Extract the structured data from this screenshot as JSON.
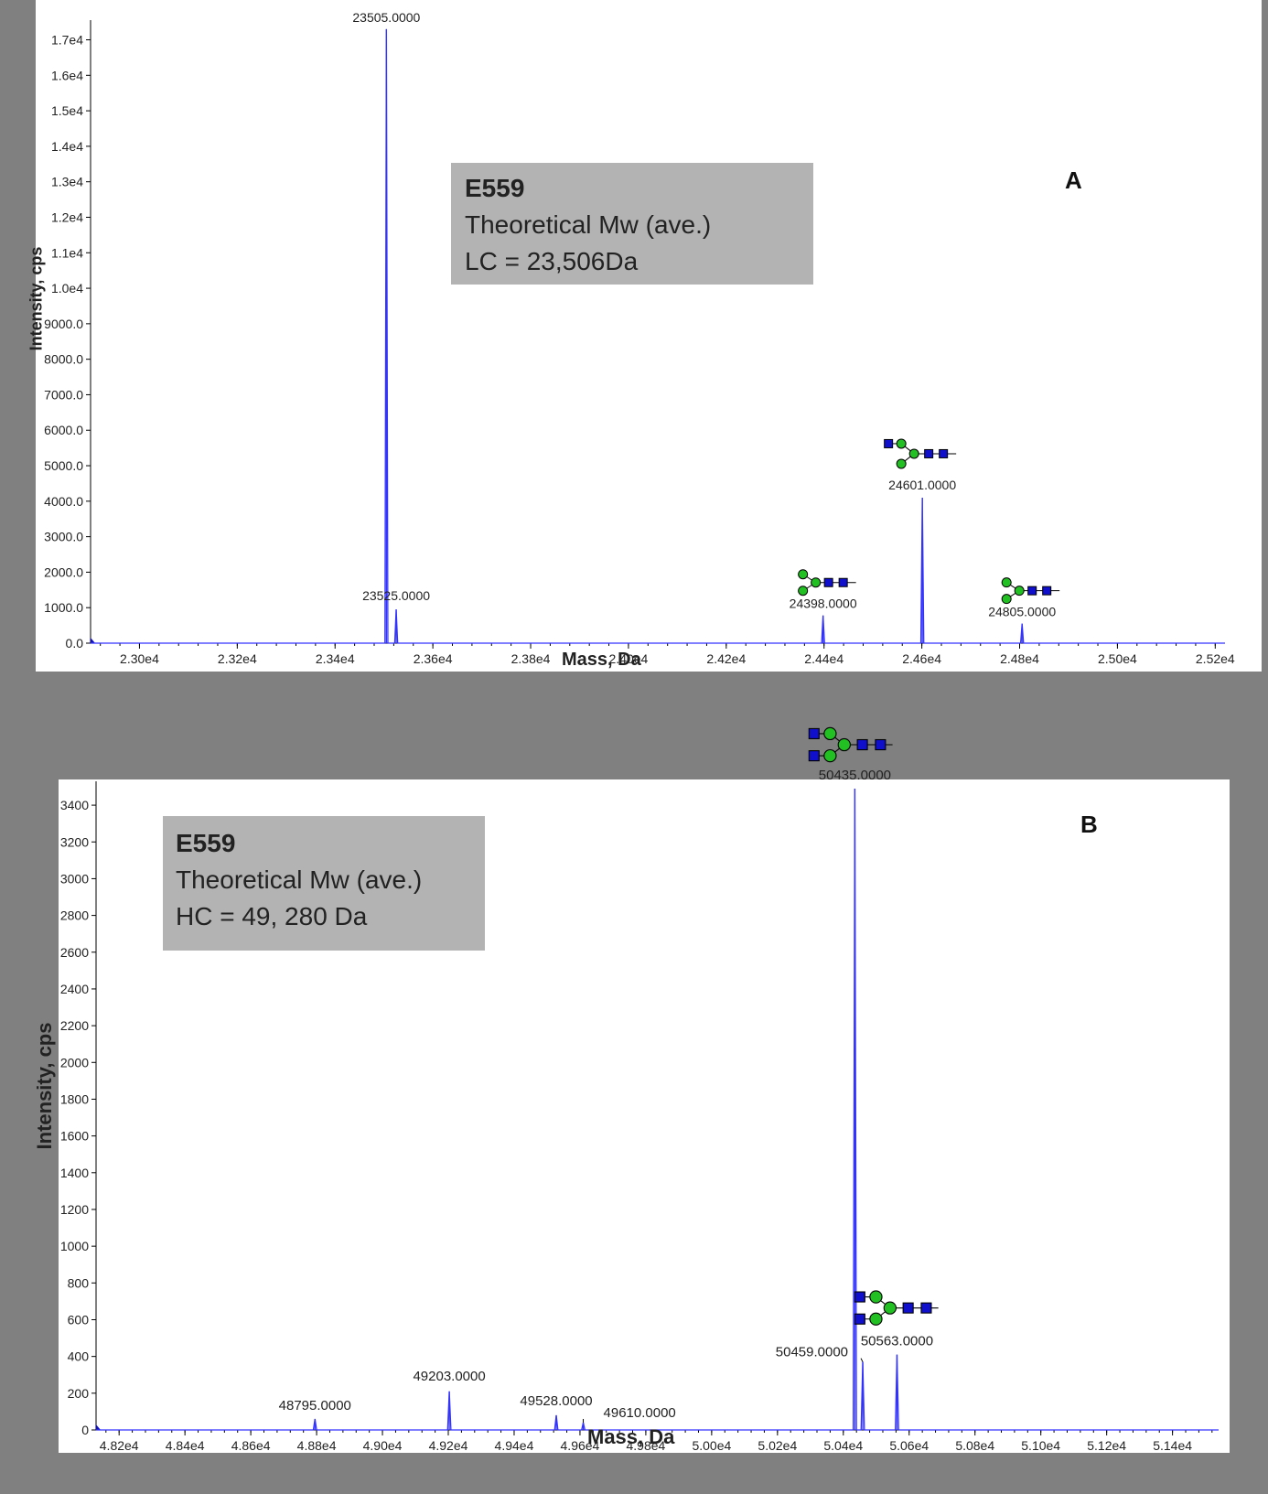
{
  "chart_data": [
    {
      "type": "line",
      "panel_label": "A",
      "xlabel": "Mass, Da",
      "ylabel": "Intensity, cps",
      "xlim": [
        22900,
        25220
      ],
      "ylim": [
        0,
        17400
      ],
      "x_ticks": [
        23000,
        23200,
        23400,
        23600,
        23800,
        24000,
        24200,
        24400,
        24600,
        24800,
        25000,
        25200
      ],
      "x_tick_labels": [
        "2.30e4",
        "2.32e4",
        "2.34e4",
        "2.36e4",
        "2.38e4",
        "2.40e4",
        "2.42e4",
        "2.44e4",
        "2.46e4",
        "2.48e4",
        "2.50e4",
        "2.52e4"
      ],
      "y_ticks": [
        0,
        1000,
        2000,
        3000,
        4000,
        5000,
        6000,
        7000,
        8000,
        9000,
        10000,
        11000,
        12000,
        13000,
        14000,
        15000,
        16000,
        17000
      ],
      "y_tick_labels": [
        "0.0",
        "1000.0",
        "2000.0",
        "3000.0",
        "4000.0",
        "5000.0",
        "6000.0",
        "7000.0",
        "8000.0",
        "9000.0",
        "1.0e4",
        "1.1e4",
        "1.2e4",
        "1.3e4",
        "1.4e4",
        "1.5e4",
        "1.6e4",
        "1.7e4"
      ],
      "peaks": [
        {
          "x": 23505,
          "y": 17300,
          "label": "23505.0000"
        },
        {
          "x": 23525,
          "y": 950,
          "label": "23525.0000"
        },
        {
          "x": 24398,
          "y": 780,
          "label": "24398.0000"
        },
        {
          "x": 24601,
          "y": 4100,
          "label": "24601.0000"
        },
        {
          "x": 24805,
          "y": 550,
          "label": "24805.0000"
        }
      ],
      "glycans": [
        {
          "peak": "24398.0000",
          "name": "glycan-g0-icon"
        },
        {
          "peak": "24601.0000",
          "name": "glycan-g1-icon"
        },
        {
          "peak": "24805.0000",
          "name": "glycan-g0-icon"
        }
      ],
      "info": {
        "title": "E559",
        "line1": "Theoretical Mw (ave.)",
        "line2": "LC = 23,506Da"
      },
      "line_color": "#3333ff"
    },
    {
      "type": "line",
      "panel_label": "B",
      "xlabel": "Mass, Da",
      "ylabel": "Intensity, cps",
      "xlim": [
        48130,
        51540
      ],
      "ylim": [
        0,
        3500
      ],
      "x_ticks": [
        48200,
        48400,
        48600,
        48800,
        49000,
        49200,
        49400,
        49600,
        49800,
        50000,
        50200,
        50400,
        50600,
        50800,
        51000,
        51200,
        51400
      ],
      "x_tick_labels": [
        "4.82e4",
        "4.84e4",
        "4.86e4",
        "4.88e4",
        "4.90e4",
        "4.92e4",
        "4.94e4",
        "4.96e4",
        "4.98e4",
        "5.00e4",
        "5.02e4",
        "5.04e4",
        "5.06e4",
        "5.08e4",
        "5.10e4",
        "5.12e4",
        "5.14e4"
      ],
      "y_ticks": [
        0,
        200,
        400,
        600,
        800,
        1000,
        1200,
        1400,
        1600,
        1800,
        2000,
        2200,
        2400,
        2600,
        2800,
        3000,
        3200,
        3400
      ],
      "y_tick_labels": [
        "0",
        "200",
        "400",
        "600",
        "800",
        "1000",
        "1200",
        "1400",
        "1600",
        "1800",
        "2000",
        "2200",
        "2400",
        "2600",
        "2800",
        "3000",
        "3200",
        "3400"
      ],
      "peaks": [
        {
          "x": 48795,
          "y": 60,
          "label": "48795.0000"
        },
        {
          "x": 49203,
          "y": 210,
          "label": "49203.0000"
        },
        {
          "x": 49528,
          "y": 80,
          "label": "49528.0000"
        },
        {
          "x": 49610,
          "y": 40,
          "label": "49610.0000"
        },
        {
          "x": 50435,
          "y": 3490,
          "label": "50435.0000"
        },
        {
          "x": 50459,
          "y": 370,
          "label": "50459.0000"
        },
        {
          "x": 50563,
          "y": 410,
          "label": "50563.0000"
        }
      ],
      "glycans": [
        {
          "peak": "50435.0000",
          "name": "glycan-g0f-icon"
        },
        {
          "peak": "50563.0000",
          "name": "glycan-g0f-icon"
        }
      ],
      "info": {
        "title": "E559",
        "line1": "Theoretical Mw (ave.)",
        "line2": "HC = 49, 280 Da"
      },
      "line_color": "#3333ff"
    }
  ]
}
